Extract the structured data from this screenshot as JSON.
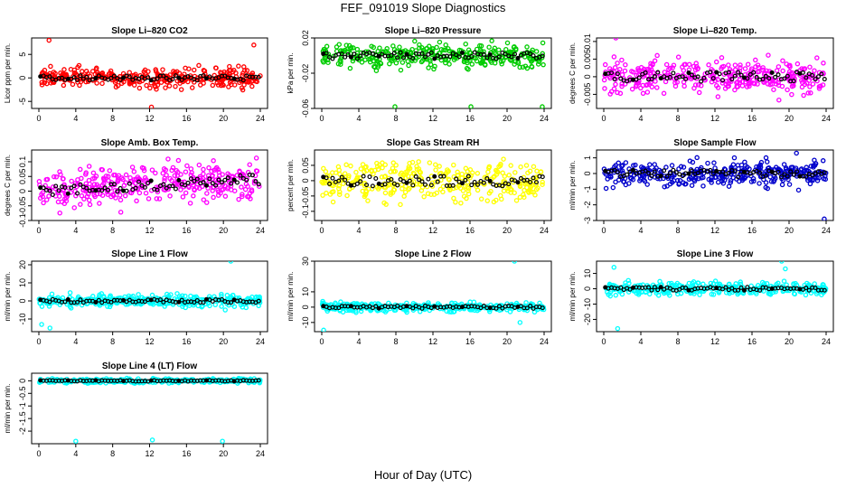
{
  "page_title": "FEF_091019  Slope Diagnostics",
  "x_axis_label": "Hour of Day (UTC)",
  "chart_data": [
    {
      "type": "scatter",
      "title": "Slope Li–820 CO2",
      "ylabel": "Licor ppm per min.",
      "color": "#ff0000",
      "xlim": [
        0,
        24
      ],
      "ylim": [
        -6.5,
        8.5
      ],
      "xticks": [
        0,
        4,
        8,
        12,
        16,
        20,
        24
      ],
      "yticks": [
        -5,
        0,
        5
      ],
      "spread": 1.2,
      "outliers": [
        [
          1.1,
          8
        ],
        [
          23.1,
          -1.8
        ],
        [
          12.2,
          -6.2
        ],
        [
          23.3,
          7
        ]
      ],
      "mean": [
        0,
        0
      ]
    },
    {
      "type": "scatter",
      "title": "Slope Li–820 Pressure",
      "ylabel": "kPa per min.",
      "color": "#00cc00",
      "xlim": [
        0,
        24
      ],
      "ylim": [
        -0.06,
        0.02
      ],
      "xticks": [
        0,
        4,
        8,
        12,
        16,
        20,
        24
      ],
      "yticks": [
        0.02,
        -0.02,
        -0.06
      ],
      "spread": 0.008,
      "outliers": [
        [
          7.9,
          -0.058
        ],
        [
          16.1,
          -0.058
        ],
        [
          23.8,
          -0.058
        ]
      ],
      "mean": [
        0,
        0
      ]
    },
    {
      "type": "scatter",
      "title": "Slope Li–820 Temp.",
      "ylabel": "degrees C per min.",
      "color": "#ff00ff",
      "xlim": [
        0,
        24
      ],
      "ylim": [
        -0.009,
        0.011
      ],
      "xticks": [
        0,
        4,
        8,
        12,
        16,
        20,
        24
      ],
      "yticks": [
        0.01,
        0.005,
        0,
        -0.005
      ],
      "spread": 0.003,
      "outliers": [
        [
          1.3,
          0.011
        ]
      ],
      "mean": [
        0,
        0
      ]
    },
    {
      "type": "scatter",
      "title": "Slope Amb. Box Temp.",
      "ylabel": "degrees C per min.",
      "color": "#ff00ff",
      "xlim": [
        0,
        24
      ],
      "ylim": [
        -0.1,
        0.14
      ],
      "xticks": [
        0,
        4,
        8,
        12,
        16,
        20,
        24
      ],
      "yticks": [
        0.1,
        0.05,
        0,
        -0.05,
        -0.1
      ],
      "spread": 0.04,
      "outliers": [],
      "mean": [
        0,
        0.04
      ]
    },
    {
      "type": "scatter",
      "title": "Slope Gas Stream RH",
      "ylabel": "percent per min.",
      "color": "#ffff00",
      "xlim": [
        0,
        24
      ],
      "ylim": [
        -0.13,
        0.1
      ],
      "xticks": [
        0,
        4,
        8,
        12,
        16,
        20,
        24
      ],
      "yticks": [
        0.05,
        0,
        -0.05,
        -0.1
      ],
      "spread": 0.04,
      "outliers": [],
      "mean": [
        0,
        0
      ]
    },
    {
      "type": "scatter",
      "title": "Slope Sample Flow",
      "ylabel": "ml/min per min.",
      "color": "#0000cc",
      "xlim": [
        0,
        24
      ],
      "ylim": [
        -3,
        1.5
      ],
      "xticks": [
        0,
        4,
        8,
        12,
        16,
        20,
        24
      ],
      "yticks": [
        1,
        0,
        -1,
        -2,
        -3
      ],
      "spread": 0.5,
      "outliers": [
        [
          20.8,
          1.3
        ],
        [
          23.8,
          -2.9
        ]
      ],
      "mean": [
        0,
        0
      ]
    },
    {
      "type": "scatter",
      "title": "Slope Line 1 Flow",
      "ylabel": "ml/min per min.",
      "color": "#00ffff",
      "xlim": [
        0,
        24
      ],
      "ylim": [
        -17,
        22
      ],
      "xticks": [
        0,
        4,
        8,
        12,
        16,
        20,
        24
      ],
      "yticks": [
        20,
        10,
        0,
        -10
      ],
      "spread": 2,
      "outliers": [
        [
          0.3,
          -13
        ],
        [
          1.2,
          -15
        ],
        [
          20.8,
          22
        ],
        [
          20.2,
          -5
        ]
      ],
      "mean": [
        0,
        0
      ]
    },
    {
      "type": "scatter",
      "title": "Slope Line 2 Flow",
      "ylabel": "ml/min per min.",
      "color": "#00ffff",
      "xlim": [
        0,
        24
      ],
      "ylim": [
        -16,
        30
      ],
      "xticks": [
        0,
        4,
        8,
        12,
        16,
        20,
        24
      ],
      "yticks": [
        30,
        10,
        0,
        -10
      ],
      "spread": 2,
      "outliers": [
        [
          0.2,
          -15
        ],
        [
          20.8,
          30
        ],
        [
          21.4,
          -10
        ]
      ],
      "mean": [
        0,
        0
      ]
    },
    {
      "type": "scatter",
      "title": "Slope Line 3 Flow",
      "ylabel": "ml/min per min.",
      "color": "#00ffff",
      "xlim": [
        0,
        24
      ],
      "ylim": [
        -28,
        18
      ],
      "xticks": [
        0,
        4,
        8,
        12,
        16,
        20,
        24
      ],
      "yticks": [
        10,
        0,
        -10,
        -20
      ],
      "spread": 2.5,
      "outliers": [
        [
          1.1,
          14
        ],
        [
          1.5,
          -26
        ],
        [
          19.2,
          18
        ],
        [
          19.6,
          13
        ]
      ],
      "mean": [
        0,
        0
      ]
    },
    {
      "type": "scatter",
      "title": "Slope Line 4 (LT) Flow",
      "ylabel": "ml/min per min.",
      "color": "#00ffff",
      "xlim": [
        0,
        24
      ],
      "ylim": [
        -2.5,
        0.3
      ],
      "xticks": [
        0,
        4,
        8,
        12,
        16,
        20,
        24
      ],
      "yticks": [
        0,
        -0.5,
        -1,
        -1.5,
        -2
      ],
      "spread": 0.05,
      "outliers": [
        [
          4,
          -2.4
        ],
        [
          12.3,
          -2.35
        ],
        [
          19.9,
          -2.4
        ]
      ],
      "mean": [
        0,
        0
      ]
    }
  ]
}
